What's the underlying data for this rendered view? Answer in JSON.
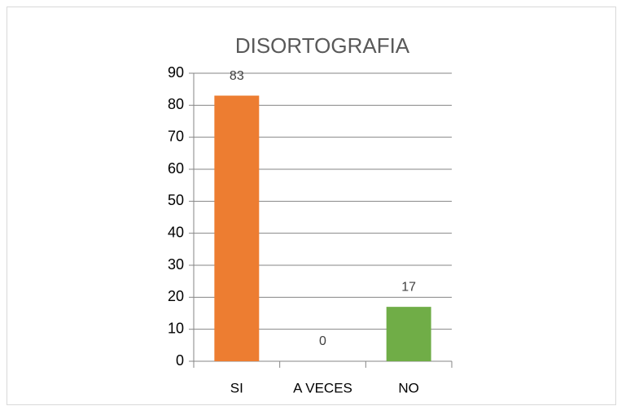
{
  "chart_data": {
    "type": "bar",
    "title": "DISORTOGRAFIA",
    "categories": [
      "SI",
      "A VECES",
      "NO"
    ],
    "values": [
      83,
      0,
      17
    ],
    "colors": [
      "#ed7d31",
      "#a5a5a5",
      "#70ad47"
    ],
    "ylim": [
      0,
      90
    ],
    "yticks": [
      0,
      10,
      20,
      30,
      40,
      50,
      60,
      70,
      80,
      90
    ],
    "grid": true,
    "data_labels": true
  }
}
